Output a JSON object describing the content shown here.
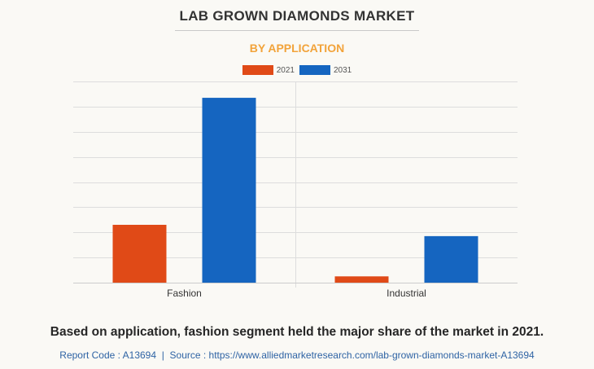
{
  "chart_data": {
    "type": "bar",
    "title": "LAB GROWN DIAMONDS MARKET",
    "subtitle": "BY APPLICATION",
    "categories": [
      "Fashion",
      "Industrial"
    ],
    "series": [
      {
        "name": "2021",
        "color": "#e04a17",
        "values": [
          23,
          2.5
        ]
      },
      {
        "name": "2031",
        "color": "#1565c0",
        "values": [
          73.5,
          18.5
        ]
      }
    ],
    "ylim": [
      0,
      80
    ],
    "y_gridline_step": 10,
    "y_tick_labels_shown": false,
    "legend_position": "top-center",
    "caption": "Based on application, fashion segment held the major share of the market in 2021."
  },
  "footer": {
    "report_code": "Report Code : A13694",
    "separator": "|",
    "source": "Source : https://www.alliedmarketresearch.com/lab-grown-diamonds-market-A13694"
  },
  "colors": {
    "title": "#333333",
    "subtitle": "#f2a33a",
    "grid": "#dddddd",
    "footer": "#2e63a4"
  }
}
